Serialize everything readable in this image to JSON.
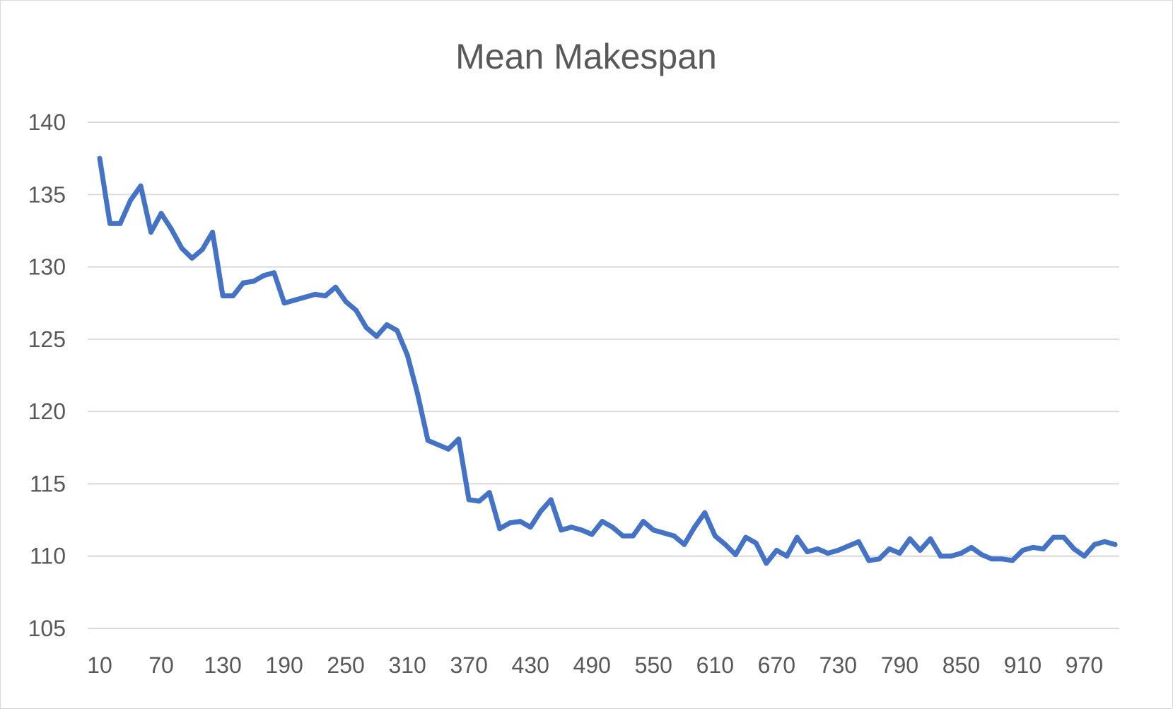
{
  "chart_data": {
    "type": "line",
    "title": "Mean Makespan",
    "xlabel": "",
    "ylabel": "",
    "ylim": [
      105,
      140
    ],
    "yticks": [
      105,
      110,
      115,
      120,
      125,
      130,
      135,
      140
    ],
    "grid": true,
    "legend": "none",
    "x_tick_labels": [
      "10",
      "70",
      "130",
      "190",
      "250",
      "310",
      "370",
      "430",
      "490",
      "550",
      "610",
      "670",
      "730",
      "790",
      "850",
      "910",
      "970"
    ],
    "x": [
      10,
      20,
      30,
      40,
      50,
      60,
      70,
      80,
      90,
      100,
      110,
      120,
      130,
      140,
      150,
      160,
      170,
      180,
      190,
      200,
      210,
      220,
      230,
      240,
      250,
      260,
      270,
      280,
      290,
      300,
      310,
      320,
      330,
      340,
      350,
      360,
      370,
      380,
      390,
      400,
      410,
      420,
      430,
      440,
      450,
      460,
      470,
      480,
      490,
      500,
      510,
      520,
      530,
      540,
      550,
      560,
      570,
      580,
      590,
      600,
      610,
      620,
      630,
      640,
      650,
      660,
      670,
      680,
      690,
      700,
      710,
      720,
      730,
      740,
      750,
      760,
      770,
      780,
      790,
      800,
      810,
      820,
      830,
      840,
      850,
      860,
      870,
      880,
      890,
      900,
      910,
      920,
      930,
      940,
      950,
      960,
      970,
      980,
      990,
      1000
    ],
    "series": [
      {
        "color": "#4472c4",
        "values": [
          137.5,
          133.0,
          133.0,
          134.6,
          135.6,
          132.4,
          133.7,
          132.6,
          131.3,
          130.6,
          131.2,
          132.4,
          128.0,
          128.0,
          128.9,
          129.0,
          129.4,
          129.6,
          127.5,
          127.7,
          127.9,
          128.1,
          128.0,
          128.6,
          127.6,
          127.0,
          125.8,
          125.2,
          126.0,
          125.6,
          123.9,
          121.2,
          118.0,
          117.7,
          117.4,
          118.1,
          113.9,
          113.8,
          114.4,
          111.9,
          112.3,
          112.4,
          112.0,
          113.1,
          113.9,
          111.8,
          112.0,
          111.8,
          111.5,
          112.4,
          112.0,
          111.4,
          111.4,
          112.4,
          111.8,
          111.6,
          111.4,
          110.8,
          112.0,
          113.0,
          111.4,
          110.8,
          110.1,
          111.3,
          110.9,
          109.5,
          110.4,
          110.0,
          111.3,
          110.3,
          110.5,
          110.2,
          110.4,
          110.7,
          111.0,
          109.7,
          109.8,
          110.5,
          110.2,
          111.2,
          110.4,
          111.2,
          110.0,
          110.0,
          110.2,
          110.6,
          110.1,
          109.8,
          109.8,
          109.7,
          110.4,
          110.6,
          110.5,
          111.3,
          111.3,
          110.5,
          110.0,
          110.8,
          111.0,
          110.8
        ]
      }
    ]
  }
}
